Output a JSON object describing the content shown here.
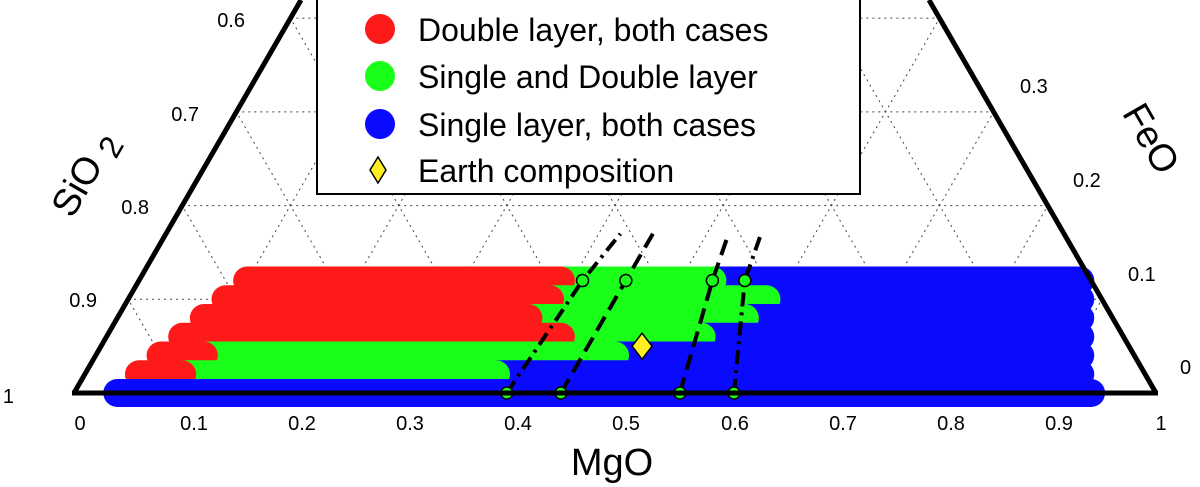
{
  "chart_data": {
    "type": "ternary-scatter",
    "axes": {
      "bottom": {
        "label": "MgO",
        "ticks": [
          "0",
          "0.1",
          "0.2",
          "0.3",
          "0.4",
          "0.5",
          "0.6",
          "0.7",
          "0.8",
          "0.9",
          "1"
        ]
      },
      "left": {
        "label_main": "SiO",
        "label_sub": "2",
        "ticks": [
          "0.6",
          "0.7",
          "0.8",
          "0.9",
          "1"
        ]
      },
      "right": {
        "label": "FeO",
        "ticks": [
          "0.3",
          "0.2",
          "0.1",
          "0"
        ]
      }
    },
    "legend": {
      "position": "top-center",
      "entries": [
        {
          "label": "Double layer, both cases",
          "color": "#ff1a1a",
          "marker": "circle"
        },
        {
          "label": "Single and Double layer",
          "color": "#1aff1a",
          "marker": "circle"
        },
        {
          "label": "Single layer, both cases",
          "color": "#0a0aff",
          "marker": "circle"
        },
        {
          "label": "Earth composition",
          "color": "#ffee22",
          "marker": "diamond"
        }
      ]
    },
    "rows_feo": [
      0.0,
      0.02,
      0.04,
      0.06,
      0.08,
      0.1,
      0.12
    ],
    "regions": [
      {
        "feo": 0.0,
        "segments": [
          {
            "class": "single",
            "mgo": [
              0.04,
              0.94
            ]
          }
        ]
      },
      {
        "feo": 0.02,
        "segments": [
          {
            "class": "double",
            "mgo": [
              0.05,
              0.09
            ]
          },
          {
            "class": "mixed",
            "mgo": [
              0.09,
              0.38
            ]
          },
          {
            "class": "single",
            "mgo": [
              0.38,
              0.92
            ]
          }
        ]
      },
      {
        "feo": 0.04,
        "segments": [
          {
            "class": "double",
            "mgo": [
              0.06,
              0.1
            ]
          },
          {
            "class": "mixed",
            "mgo": [
              0.1,
              0.48
            ]
          },
          {
            "class": "single",
            "mgo": [
              0.48,
              0.91
            ]
          }
        ]
      },
      {
        "feo": 0.06,
        "segments": [
          {
            "class": "double",
            "mgo": [
              0.07,
              0.42
            ]
          },
          {
            "class": "mixed",
            "mgo": [
              0.42,
              0.55
            ]
          },
          {
            "class": "single",
            "mgo": [
              0.55,
              0.9
            ]
          }
        ]
      },
      {
        "feo": 0.08,
        "segments": [
          {
            "class": "double",
            "mgo": [
              0.08,
              0.38
            ]
          },
          {
            "class": "mixed",
            "mgo": [
              0.38,
              0.58
            ]
          },
          {
            "class": "single",
            "mgo": [
              0.58,
              0.89
            ]
          }
        ]
      },
      {
        "feo": 0.1,
        "segments": [
          {
            "class": "double",
            "mgo": [
              0.09,
              0.39
            ]
          },
          {
            "class": "mixed",
            "mgo": [
              0.39,
              0.59
            ]
          },
          {
            "class": "single",
            "mgo": [
              0.59,
              0.88
            ]
          }
        ]
      },
      {
        "feo": 0.12,
        "segments": [
          {
            "class": "double",
            "mgo": [
              0.1,
              0.39
            ]
          },
          {
            "class": "mixed",
            "mgo": [
              0.39,
              0.53
            ]
          },
          {
            "class": "single",
            "mgo": [
              0.53,
              0.87
            ]
          }
        ]
      }
    ],
    "boundary_lines": [
      {
        "style": "dashdot",
        "points": [
          {
            "mgo": 0.4,
            "feo": 0.0
          },
          {
            "mgo": 0.41,
            "feo": 0.12
          },
          {
            "mgo": 0.42,
            "feo": 0.17
          }
        ]
      },
      {
        "style": "dashed",
        "points": [
          {
            "mgo": 0.45,
            "feo": 0.0
          },
          {
            "mgo": 0.45,
            "feo": 0.12
          },
          {
            "mgo": 0.45,
            "feo": 0.17
          }
        ]
      },
      {
        "style": "dashed",
        "points": [
          {
            "mgo": 0.56,
            "feo": 0.0
          },
          {
            "mgo": 0.53,
            "feo": 0.12
          },
          {
            "mgo": 0.52,
            "feo": 0.17
          }
        ]
      },
      {
        "style": "dashdot",
        "points": [
          {
            "mgo": 0.61,
            "feo": 0.0
          },
          {
            "mgo": 0.56,
            "feo": 0.12
          },
          {
            "mgo": 0.55,
            "feo": 0.17
          }
        ]
      }
    ],
    "markers_green": [
      {
        "mgo": 0.41,
        "feo": 0.12
      },
      {
        "mgo": 0.45,
        "feo": 0.12
      },
      {
        "mgo": 0.53,
        "feo": 0.12
      },
      {
        "mgo": 0.56,
        "feo": 0.12
      },
      {
        "mgo": 0.4,
        "feo": 0.0
      },
      {
        "mgo": 0.45,
        "feo": 0.0
      },
      {
        "mgo": 0.56,
        "feo": 0.0
      },
      {
        "mgo": 0.61,
        "feo": 0.0
      }
    ],
    "earth_composition": {
      "mgo": 0.5,
      "feo": 0.05
    }
  }
}
